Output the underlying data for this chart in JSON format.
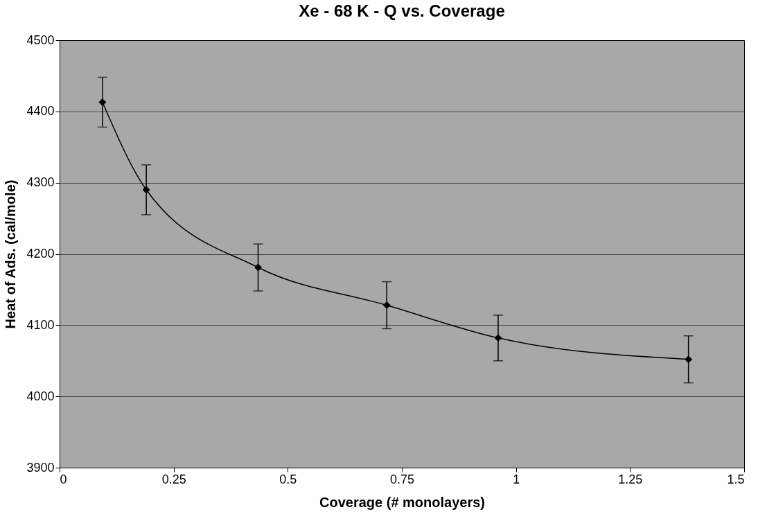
{
  "chart_data": {
    "type": "line",
    "title": "Xe - 68 K - Q vs. Coverage",
    "xlabel": "Coverage (# monolayers)",
    "ylabel": "Heat of Ads. (cal/mole)",
    "x": [
      0.094,
      0.19,
      0.435,
      0.717,
      0.961,
      1.378
    ],
    "series": [
      {
        "color": "#000000",
        "values": [
          4413,
          4290,
          4181,
          4128,
          4082,
          4052
        ],
        "errors": [
          35,
          35,
          33,
          33,
          32,
          33
        ]
      }
    ],
    "xlim": [
      0,
      1.5
    ],
    "xticks": [
      0,
      0.25,
      0.5,
      0.75,
      1,
      1.25,
      1.5
    ],
    "ylim": [
      3900,
      4500
    ],
    "yticks": [
      3900,
      4000,
      4100,
      4200,
      4300,
      4400,
      4500
    ],
    "grid": "y",
    "marker": "diamond",
    "line_style": "solid"
  }
}
